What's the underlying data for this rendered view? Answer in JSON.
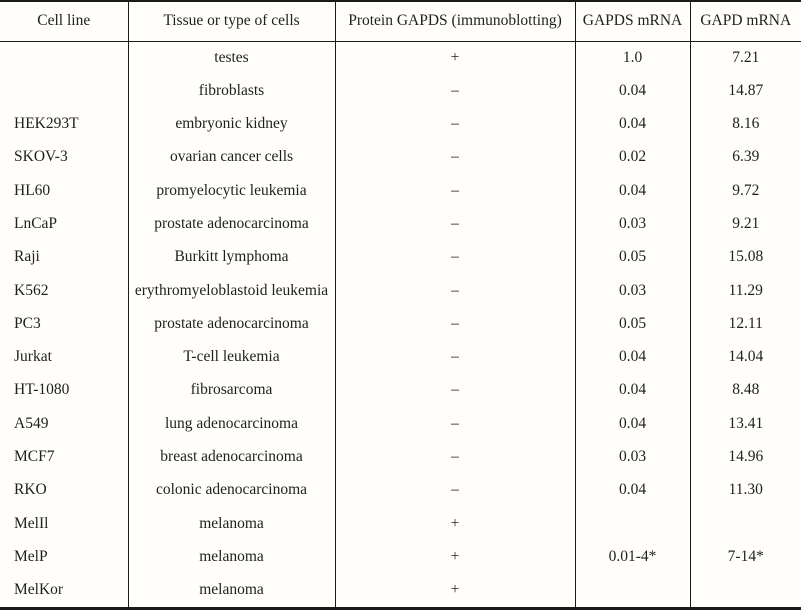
{
  "table": {
    "headers": [
      "Cell line",
      "Tissue or type of cells",
      "Protein GAPDS (immunoblotting)",
      "GAPDS mRNA",
      "GAPD mRNA"
    ],
    "rows": [
      [
        "",
        "testes",
        "+",
        "1.0",
        "7.21"
      ],
      [
        "",
        "fibroblasts",
        "–",
        "0.04",
        "14.87"
      ],
      [
        "HEK293T",
        "embryonic kidney",
        "–",
        "0.04",
        "8.16"
      ],
      [
        "SKOV-3",
        "ovarian cancer cells",
        "–",
        "0.02",
        "6.39"
      ],
      [
        "HL60",
        "promyelocytic leukemia",
        "–",
        "0.04",
        "9.72"
      ],
      [
        "LnCaP",
        "prostate adenocarcinoma",
        "–",
        "0.03",
        "9.21"
      ],
      [
        "Raji",
        "Burkitt lymphoma",
        "–",
        "0.05",
        "15.08"
      ],
      [
        "K562",
        "erythromyeloblastoid leukemia",
        "–",
        "0.03",
        "11.29"
      ],
      [
        "PC3",
        "prostate adenocarcinoma",
        "–",
        "0.05",
        "12.11"
      ],
      [
        "Jurkat",
        "T-cell leukemia",
        "–",
        "0.04",
        "14.04"
      ],
      [
        "HT-1080",
        "fibrosarcoma",
        "–",
        "0.04",
        "8.48"
      ],
      [
        "A549",
        "lung adenocarcinoma",
        "–",
        "0.04",
        "13.41"
      ],
      [
        "MCF7",
        "breast adenocarcinoma",
        "–",
        "0.03",
        "14.96"
      ],
      [
        "RKO",
        "colonic adenocarcinoma",
        "–",
        "0.04",
        "11.30"
      ],
      [
        "MelIl",
        "melanoma",
        "+",
        "",
        ""
      ],
      [
        "MelP",
        "melanoma",
        "+",
        "0.01-4*",
        "7-14*"
      ],
      [
        "MelKor",
        "melanoma",
        "+",
        "",
        ""
      ]
    ]
  },
  "colors": {
    "text": "#1f1f1f",
    "line": "#1a1a1a",
    "background": "#fffefb"
  }
}
